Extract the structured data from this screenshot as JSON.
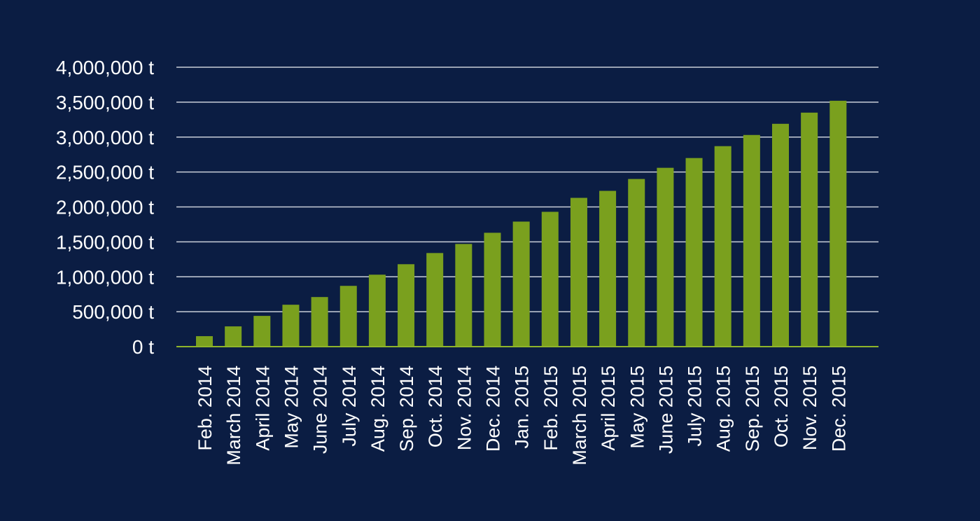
{
  "colors": {
    "background": "#0b1d43",
    "bar": "#7aa01e",
    "gridline": "#c9ced8",
    "baseline": "#8fb52a",
    "text": "#ffffff"
  },
  "chart_data": {
    "type": "bar",
    "title": "",
    "xlabel": "",
    "ylabel": "",
    "ylim": [
      0,
      4000000
    ],
    "grid": true,
    "legend": "none",
    "y_ticks": [
      0,
      500000,
      1000000,
      1500000,
      2000000,
      2500000,
      3000000,
      3500000,
      4000000
    ],
    "y_tick_labels": [
      "0 t",
      "500,000 t",
      "1,000,000 t",
      "1,500,000 t",
      "2,000,000 t",
      "2,500,000 t",
      "3,000,000 t",
      "3,500,000 t",
      "4,000,000 t"
    ],
    "categories": [
      "Feb. 2014",
      "March 2014",
      "April 2014",
      "May 2014",
      "June 2014",
      "July 2014",
      "Aug. 2014",
      "Sep. 2014",
      "Oct. 2014",
      "Nov. 2014",
      "Dec. 2014",
      "Jan. 2015",
      "Feb. 2015",
      "March 2015",
      "April 2015",
      "May 2015",
      "June 2015",
      "July 2015",
      "Aug. 2015",
      "Sep. 2015",
      "Oct. 2015",
      "Nov. 2015",
      "Dec. 2015"
    ],
    "values": [
      150000,
      290000,
      440000,
      600000,
      710000,
      870000,
      1030000,
      1180000,
      1340000,
      1470000,
      1630000,
      1790000,
      1930000,
      2130000,
      2230000,
      2400000,
      2560000,
      2700000,
      2870000,
      3030000,
      3190000,
      3350000,
      3520000
    ]
  }
}
